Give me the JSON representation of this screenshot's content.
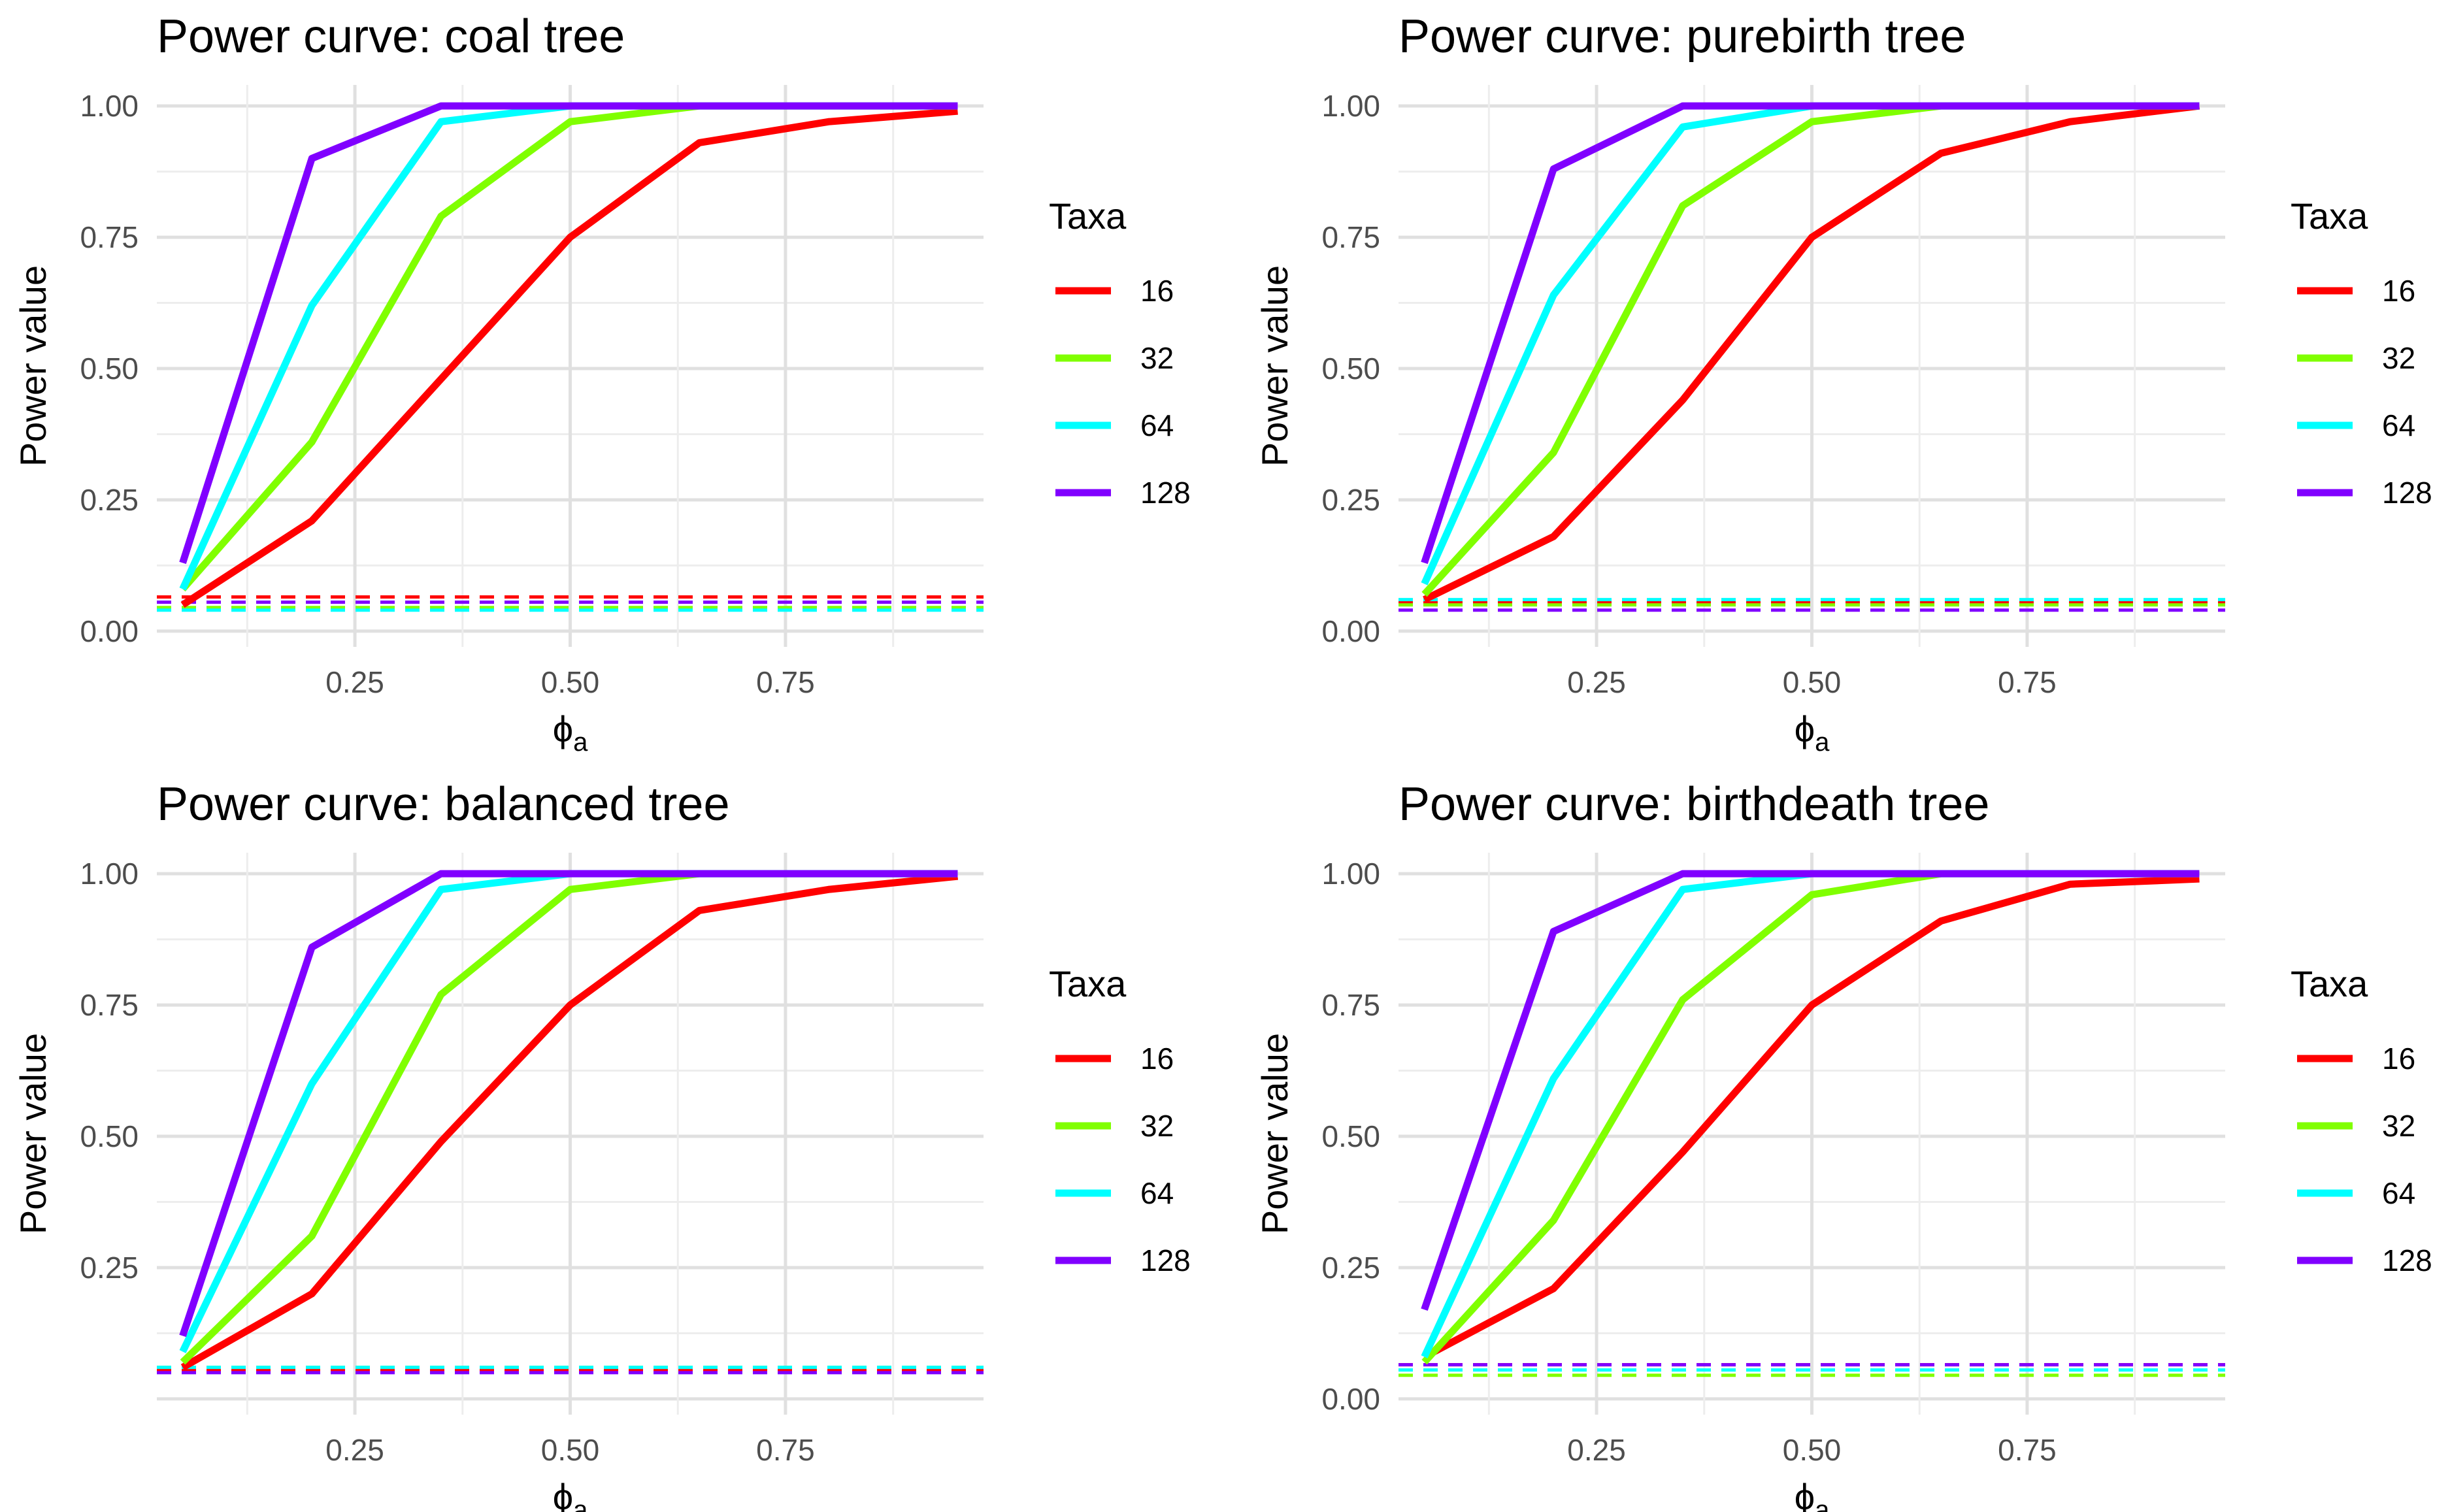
{
  "chart_data": [
    {
      "type": "line",
      "title": "Power curve: coal tree",
      "xlabel": "ϕ",
      "xlabel_sub": "a",
      "ylabel": "Power value",
      "xlim": [
        0.02,
        0.98
      ],
      "ylim": [
        -0.03,
        1.04
      ],
      "x_ticks": [
        0.25,
        0.5,
        0.75
      ],
      "x_tick_labels": [
        "0.25",
        "0.50",
        "0.75"
      ],
      "y_ticks": [
        0,
        0.25,
        0.5,
        0.75,
        1.0
      ],
      "y_tick_labels": [
        "0.00",
        "0.25",
        "0.50",
        "0.75",
        "1.00"
      ],
      "legend_title": "Taxa",
      "x": [
        0.05,
        0.2,
        0.35,
        0.5,
        0.65,
        0.8,
        0.95
      ],
      "series": [
        {
          "name": "16",
          "color": "#FF0000",
          "values": [
            0.05,
            0.21,
            0.48,
            0.75,
            0.93,
            0.97,
            0.99
          ],
          "threshold": 0.065
        },
        {
          "name": "32",
          "color": "#80FF00",
          "values": [
            0.08,
            0.36,
            0.79,
            0.97,
            1.0,
            1.0,
            1.0
          ],
          "threshold": 0.045
        },
        {
          "name": "64",
          "color": "#00FFFF",
          "values": [
            0.08,
            0.62,
            0.97,
            1.0,
            1.0,
            1.0,
            1.0
          ],
          "threshold": 0.04
        },
        {
          "name": "128",
          "color": "#8000FF",
          "values": [
            0.13,
            0.9,
            1.0,
            1.0,
            1.0,
            1.0,
            1.0
          ],
          "threshold": 0.055
        }
      ]
    },
    {
      "type": "line",
      "title": "Power curve: purebirth tree",
      "xlabel": "ϕ",
      "xlabel_sub": "a",
      "ylabel": "Power value",
      "xlim": [
        0.02,
        0.98
      ],
      "ylim": [
        -0.03,
        1.04
      ],
      "x_ticks": [
        0.25,
        0.5,
        0.75
      ],
      "x_tick_labels": [
        "0.25",
        "0.50",
        "0.75"
      ],
      "y_ticks": [
        0,
        0.25,
        0.5,
        0.75,
        1.0
      ],
      "y_tick_labels": [
        "0.00",
        "0.25",
        "0.50",
        "0.75",
        "1.00"
      ],
      "legend_title": "Taxa",
      "x": [
        0.05,
        0.2,
        0.35,
        0.5,
        0.65,
        0.8,
        0.95
      ],
      "series": [
        {
          "name": "16",
          "color": "#FF0000",
          "values": [
            0.06,
            0.18,
            0.44,
            0.75,
            0.91,
            0.97,
            1.0
          ],
          "threshold": 0.055
        },
        {
          "name": "32",
          "color": "#80FF00",
          "values": [
            0.07,
            0.34,
            0.81,
            0.97,
            1.0,
            1.0,
            1.0
          ],
          "threshold": 0.05
        },
        {
          "name": "64",
          "color": "#00FFFF",
          "values": [
            0.09,
            0.64,
            0.96,
            1.0,
            1.0,
            1.0,
            1.0
          ],
          "threshold": 0.06
        },
        {
          "name": "128",
          "color": "#8000FF",
          "values": [
            0.13,
            0.88,
            1.0,
            1.0,
            1.0,
            1.0,
            1.0
          ],
          "threshold": 0.04
        }
      ]
    },
    {
      "type": "line",
      "title": "Power curve: balanced tree",
      "xlabel": "ϕ",
      "xlabel_sub": "a",
      "ylabel": "Power value",
      "xlim": [
        0.02,
        0.98
      ],
      "ylim": [
        -0.03,
        1.04
      ],
      "x_ticks": [
        0.25,
        0.5,
        0.75
      ],
      "x_tick_labels": [
        "0.25",
        "0.50",
        "0.75"
      ],
      "y_ticks": [
        0.25,
        0.5,
        0.75,
        1.0
      ],
      "y_tick_labels": [
        "0.25",
        "0.50",
        "0.75",
        "1.00"
      ],
      "legend_title": "Taxa",
      "x": [
        0.05,
        0.2,
        0.35,
        0.5,
        0.65,
        0.8,
        0.95
      ],
      "series": [
        {
          "name": "16",
          "color": "#FF0000",
          "values": [
            0.06,
            0.2,
            0.49,
            0.75,
            0.93,
            0.97,
            0.995
          ],
          "threshold": 0.055
        },
        {
          "name": "32",
          "color": "#80FF00",
          "values": [
            0.07,
            0.31,
            0.77,
            0.97,
            1.0,
            1.0,
            1.0
          ],
          "threshold": 0.06
        },
        {
          "name": "64",
          "color": "#00FFFF",
          "values": [
            0.09,
            0.6,
            0.97,
            1.0,
            1.0,
            1.0,
            1.0
          ],
          "threshold": 0.06
        },
        {
          "name": "128",
          "color": "#8000FF",
          "values": [
            0.12,
            0.86,
            1.0,
            1.0,
            1.0,
            1.0,
            1.0
          ],
          "threshold": 0.05
        }
      ]
    },
    {
      "type": "line",
      "title": "Power curve: birthdeath tree",
      "xlabel": "ϕ",
      "xlabel_sub": "a",
      "ylabel": "Power value",
      "xlim": [
        0.02,
        0.98
      ],
      "ylim": [
        -0.03,
        1.04
      ],
      "x_ticks": [
        0.25,
        0.5,
        0.75
      ],
      "x_tick_labels": [
        "0.25",
        "0.50",
        "0.75"
      ],
      "y_ticks": [
        0,
        0.25,
        0.5,
        0.75,
        1.0
      ],
      "y_tick_labels": [
        "0.00",
        "0.25",
        "0.50",
        "0.75",
        "1.00"
      ],
      "legend_title": "Taxa",
      "x": [
        0.05,
        0.2,
        0.35,
        0.5,
        0.65,
        0.8,
        0.95
      ],
      "series": [
        {
          "name": "16",
          "color": "#FF0000",
          "values": [
            0.08,
            0.21,
            0.47,
            0.75,
            0.91,
            0.98,
            0.99
          ],
          "threshold": 0.065
        },
        {
          "name": "32",
          "color": "#80FF00",
          "values": [
            0.07,
            0.34,
            0.76,
            0.96,
            1.0,
            1.0,
            1.0
          ],
          "threshold": 0.045
        },
        {
          "name": "64",
          "color": "#00FFFF",
          "values": [
            0.08,
            0.61,
            0.97,
            1.0,
            1.0,
            1.0,
            1.0
          ],
          "threshold": 0.055
        },
        {
          "name": "128",
          "color": "#8000FF",
          "values": [
            0.17,
            0.89,
            1.0,
            1.0,
            1.0,
            1.0,
            1.0
          ],
          "threshold": 0.065
        }
      ]
    }
  ]
}
